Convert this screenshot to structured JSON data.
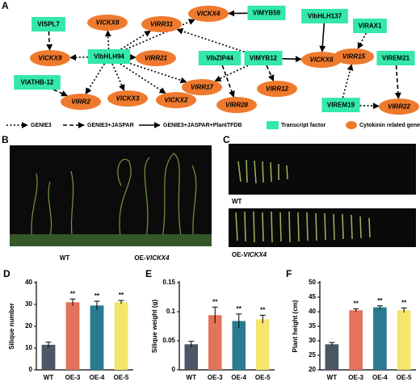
{
  "panels": {
    "a": "A",
    "b": "B",
    "c": "C",
    "d": "D",
    "e": "E",
    "f": "F"
  },
  "network": {
    "transcription_factors": [
      "VlSPL7",
      "VlbHLH94",
      "VlATHB-12",
      "VlbZIP44",
      "VlMYB12",
      "VlMYB59",
      "VlbHLH137",
      "VlRAX1",
      "VlREM19",
      "VlREM21"
    ],
    "cytokinin_genes": [
      "VlCKX8",
      "VlCKX4",
      "VlRR31",
      "VlCKX9",
      "VlRR21",
      "VlCKX6",
      "VlRR15",
      "VlRR2",
      "VlCKX3",
      "VlCKX2",
      "VlRR17",
      "VlRR28",
      "VlRR12",
      "VlRR22"
    ],
    "tf_color": "#33e8a8",
    "gene_color": "#ef7a2e",
    "legend": [
      "GENIE3",
      "GENIE3+JASPAR",
      "GENIE3+JASPAR+PlantTFDB",
      "Transcript factor",
      "Cytokinin related gene"
    ]
  },
  "photos": {
    "b_wt": "WT",
    "c_wt": "WT",
    "oe_prefix": "OE-",
    "oe_gene": "VlCKX4"
  },
  "chart_data": [
    {
      "type": "bar",
      "ylabel": "Silique number",
      "categories": [
        "WT",
        "OE-3",
        "OE-4",
        "OE-5"
      ],
      "values": [
        11.5,
        31,
        29.5,
        31
      ],
      "errors": [
        1.2,
        1.5,
        2,
        0.8
      ],
      "significance": [
        null,
        "**",
        "**",
        "**"
      ],
      "colors": [
        "#4b5666",
        "#e3735b",
        "#2a7b90",
        "#f4e56b"
      ],
      "ylim": [
        0,
        40
      ],
      "yticks": [
        0,
        10,
        20,
        30,
        40
      ]
    },
    {
      "type": "bar",
      "ylabel": "Silique weight (g)",
      "categories": [
        "WT",
        "OE-3",
        "OE-4",
        "OE-5"
      ],
      "values": [
        0.044,
        0.094,
        0.084,
        0.087
      ],
      "errors": [
        0.005,
        0.014,
        0.012,
        0.007
      ],
      "significance": [
        null,
        "**",
        "**",
        "**"
      ],
      "colors": [
        "#4b5666",
        "#e3735b",
        "#2a7b90",
        "#f4e56b"
      ],
      "ylim": [
        0,
        0.15
      ],
      "yticks": [
        0,
        0.05,
        0.1,
        0.15
      ]
    },
    {
      "type": "bar",
      "ylabel": "Plant height (cm)",
      "categories": [
        "WT",
        "OE-3",
        "OE-4",
        "OE-5"
      ],
      "values": [
        28.8,
        40.5,
        41.5,
        40.5
      ],
      "errors": [
        0.6,
        0.5,
        0.5,
        0.8
      ],
      "significance": [
        null,
        "**",
        "**",
        "**"
      ],
      "colors": [
        "#4b5666",
        "#e3735b",
        "#2a7b90",
        "#f4e56b"
      ],
      "ylim": [
        20,
        50
      ],
      "yticks": [
        20,
        25,
        30,
        35,
        40,
        45,
        50
      ]
    }
  ]
}
